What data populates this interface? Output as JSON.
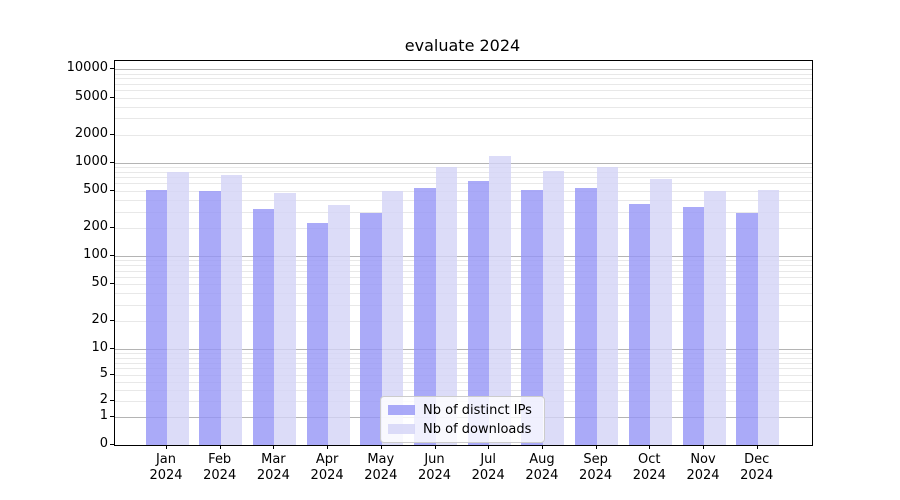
{
  "title": "evaluate 2024",
  "legend": {
    "items": [
      {
        "label": "Nb of distinct IPs"
      },
      {
        "label": "Nb of downloads"
      }
    ],
    "position": "lower center"
  },
  "colors": {
    "bar_ips_base": "#9595f6",
    "bar_downloads_base": "#d3d3f6",
    "bar_ips_blended": "#aaaaf8",
    "bar_downloads_blended": "#dcdcf8",
    "fill_alpha": 0.8,
    "grid_major": "#b4b4b4",
    "grid_minor": "#e8e8e8",
    "axis": "#000000"
  },
  "chart_data": {
    "type": "bar",
    "title": "evaluate 2024",
    "categories": [
      "Jan 2024",
      "Feb 2024",
      "Mar 2024",
      "Apr 2024",
      "May 2024",
      "Jun 2024",
      "Jul 2024",
      "Aug 2024",
      "Sep 2024",
      "Oct 2024",
      "Nov 2024",
      "Dec 2024"
    ],
    "series": [
      {
        "name": "Nb of distinct IPs",
        "color": "#9595f6",
        "values": [
          520,
          500,
          325,
          225,
          290,
          545,
          650,
          520,
          540,
          360,
          340,
          290
        ]
      },
      {
        "name": "Nb of downloads",
        "color": "#d3d3f6",
        "values": [
          800,
          740,
          480,
          355,
          505,
          900,
          1200,
          820,
          910,
          680,
          505,
          510
        ]
      }
    ],
    "xlabel": "",
    "ylabel": "",
    "yscale": "symlog",
    "yticks": [
      10000,
      5000,
      2000,
      1000,
      500,
      200,
      100,
      50,
      20,
      10,
      5,
      2,
      1,
      0
    ],
    "major_grid_values": [
      10000,
      1000,
      100,
      10,
      1
    ],
    "ylim": [
      0,
      12300
    ],
    "grid": "both",
    "legend_position": "lower center"
  }
}
